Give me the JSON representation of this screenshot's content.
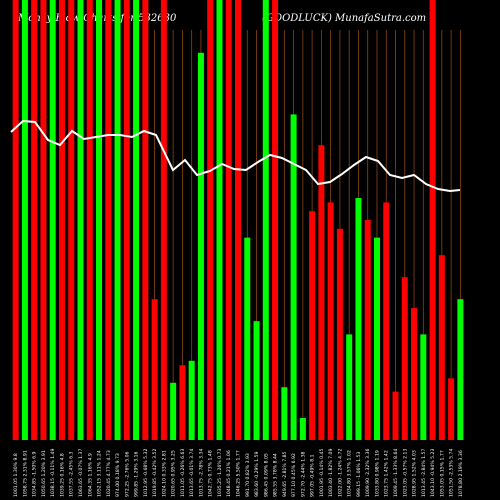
{
  "chart_data": {
    "type": "bar",
    "title_left": "Money Flow  Charts for 532630",
    "title_right": "(GOODLUCK) MunafaSutra.com",
    "colors": {
      "up": "#00ff00",
      "down": "#ff0000",
      "line": "#ffffff",
      "grid": "#8b4513",
      "background": "#000000"
    },
    "ylim": [
      0,
      100
    ],
    "bars": [
      {
        "label": "1001.05 1.30% 9.8",
        "value": 100,
        "dir": "down"
      },
      {
        "label": "1058.75 2.31% 8.91",
        "value": 100,
        "dir": "up"
      },
      {
        "label": "1034.85 -1.50% 6.9",
        "value": 100,
        "dir": "down"
      },
      {
        "label": "1050.65 1.20% 3.91",
        "value": 100,
        "dir": "down"
      },
      {
        "label": "1038.15 -0.11% 1.49",
        "value": 100,
        "dir": "up"
      },
      {
        "label": "1039.25 0.16% 4.8",
        "value": 100,
        "dir": "down"
      },
      {
        "label": "1037.55 -2.45% 6.3",
        "value": 100,
        "dir": "down"
      },
      {
        "label": "1063.65 -0.07% 1.37",
        "value": 100,
        "dir": "up"
      },
      {
        "label": "1064.35 1.16% 4.9",
        "value": 100,
        "dir": "down"
      },
      {
        "label": "1052.15 3.11% 1.24",
        "value": 100,
        "dir": "up"
      },
      {
        "label": "1020.45 4.77% 4.73",
        "value": 100,
        "dir": "down"
      },
      {
        "label": "974.00 0.18% 9.73",
        "value": 100,
        "dir": "up"
      },
      {
        "label": "972.25 -2.76% 5.06",
        "value": 100,
        "dir": "down"
      },
      {
        "label": "999.85 -1.29% 3.16",
        "value": 100,
        "dir": "up"
      },
      {
        "label": "1012.95 -0.68% 5.32",
        "value": 100,
        "dir": "down"
      },
      {
        "label": "1019.85 -0.42% 3.52",
        "value": 32,
        "dir": "down"
      },
      {
        "label": "1024.10 0.33% 2.81",
        "value": 100,
        "dir": "down"
      },
      {
        "label": "1020.65 0.95% 3.25",
        "value": 13,
        "dir": "up"
      },
      {
        "label": "1011.05 -0.26% 6.63",
        "value": 17,
        "dir": "down"
      },
      {
        "label": "1013.65 -0.01% 3.74",
        "value": 18,
        "dir": "up"
      },
      {
        "label": "1013.75 -2.78% 3.34",
        "value": 88,
        "dir": "up"
      },
      {
        "label": "1042.75 0.73% 1.48",
        "value": 100,
        "dir": "down"
      },
      {
        "label": "1035.25 -1.26% 0.73",
        "value": 100,
        "dir": "up"
      },
      {
        "label": "1048.45 0.21% 1.06",
        "value": 100,
        "dir": "down"
      },
      {
        "label": "1046.25 5.50% 1.77",
        "value": 100,
        "dir": "down"
      },
      {
        "label": "991.70 0.82% 3.93",
        "value": 46,
        "dir": "up"
      },
      {
        "label": "983.60 -0.29% 1.59",
        "value": 27,
        "dir": "up"
      },
      {
        "label": "986.45 0.09% 8.05",
        "value": 100,
        "dir": "up"
      },
      {
        "label": "985.55 3.78% 8.44",
        "value": 100,
        "dir": "down"
      },
      {
        "label": "949.65 -2.81% 7.85",
        "value": 12,
        "dir": "up"
      },
      {
        "label": "977.10 0.45% 6.92",
        "value": 74,
        "dir": "up"
      },
      {
        "label": "972.70 -2.44% 1.38",
        "value": 5,
        "dir": "up"
      },
      {
        "label": "997.05 -0.49% 8.1",
        "value": 52,
        "dir": "down"
      },
      {
        "label": "1001.95 -0.14% 0.45",
        "value": 67,
        "dir": "down"
      },
      {
        "label": "1003.40 -1.82% 7.09",
        "value": 54,
        "dir": "down"
      },
      {
        "label": "1022.00 -1.24% 4.72",
        "value": 48,
        "dir": "down"
      },
      {
        "label": "1034.80 3.57% 1.02",
        "value": 24,
        "dir": "up"
      },
      {
        "label": "999.15 -1.06% 1.53",
        "value": 55,
        "dir": "up"
      },
      {
        "label": "1009.90 -2.32% 3.36",
        "value": 50,
        "dir": "down"
      },
      {
        "label": "1033.80 0.98% 1.19",
        "value": 46,
        "dir": "up"
      },
      {
        "label": "1023.75 1.42% 1.42",
        "value": 54,
        "dir": "down"
      },
      {
        "label": "1009.45 -1.33% 8.64",
        "value": 11,
        "dir": "down"
      },
      {
        "label": "1023.05 -0.57% 2.13",
        "value": 37,
        "dir": "down"
      },
      {
        "label": "1028.95 1.52% 4.03",
        "value": 30,
        "dir": "down"
      },
      {
        "label": "1013.45 -2.84% 1.57",
        "value": 24,
        "dir": "up"
      },
      {
        "label": "1043.10 -0.94% 5.23",
        "value": 100,
        "dir": "down"
      },
      {
        "label": "1053.05 0.15% 1.77",
        "value": 42,
        "dir": "down"
      },
      {
        "label": "1051.50 -2.53% 5.74",
        "value": 14,
        "dir": "down"
      },
      {
        "label": "1078.80 2.19% 3.36",
        "value": 32,
        "dir": "up"
      }
    ],
    "line": [
      76,
      77,
      77,
      75,
      74,
      76,
      75,
      75,
      75,
      75,
      75,
      74,
      73,
      72,
      71,
      69,
      67,
      65,
      64,
      64,
      64,
      63,
      62,
      61,
      62,
      63,
      63,
      63,
      64,
      64,
      64,
      64,
      64,
      65,
      65,
      64,
      63,
      62,
      61,
      62,
      63,
      64,
      64,
      64,
      63,
      62,
      63,
      63,
      63
    ],
    "price_line_points": [
      [
        11,
        132
      ],
      [
        23,
        121
      ],
      [
        35,
        122
      ],
      [
        48,
        140
      ],
      [
        60,
        145
      ],
      [
        72,
        131
      ],
      [
        84,
        139
      ],
      [
        96,
        137
      ],
      [
        108,
        135
      ],
      [
        120,
        135
      ],
      [
        132,
        137
      ],
      [
        144,
        131
      ],
      [
        156,
        135
      ],
      [
        173,
        170
      ],
      [
        185,
        160
      ],
      [
        197,
        175
      ],
      [
        210,
        171
      ],
      [
        222,
        164
      ],
      [
        234,
        169
      ],
      [
        246,
        170
      ],
      [
        258,
        162
      ],
      [
        270,
        155
      ],
      [
        282,
        158
      ],
      [
        294,
        164
      ],
      [
        306,
        170
      ],
      [
        318,
        184
      ],
      [
        330,
        182
      ],
      [
        342,
        174
      ],
      [
        354,
        165
      ],
      [
        366,
        157
      ],
      [
        378,
        161
      ],
      [
        390,
        175
      ],
      [
        402,
        178
      ],
      [
        414,
        175
      ],
      [
        426,
        184
      ],
      [
        438,
        189
      ],
      [
        450,
        191
      ],
      [
        460,
        190
      ]
    ]
  }
}
